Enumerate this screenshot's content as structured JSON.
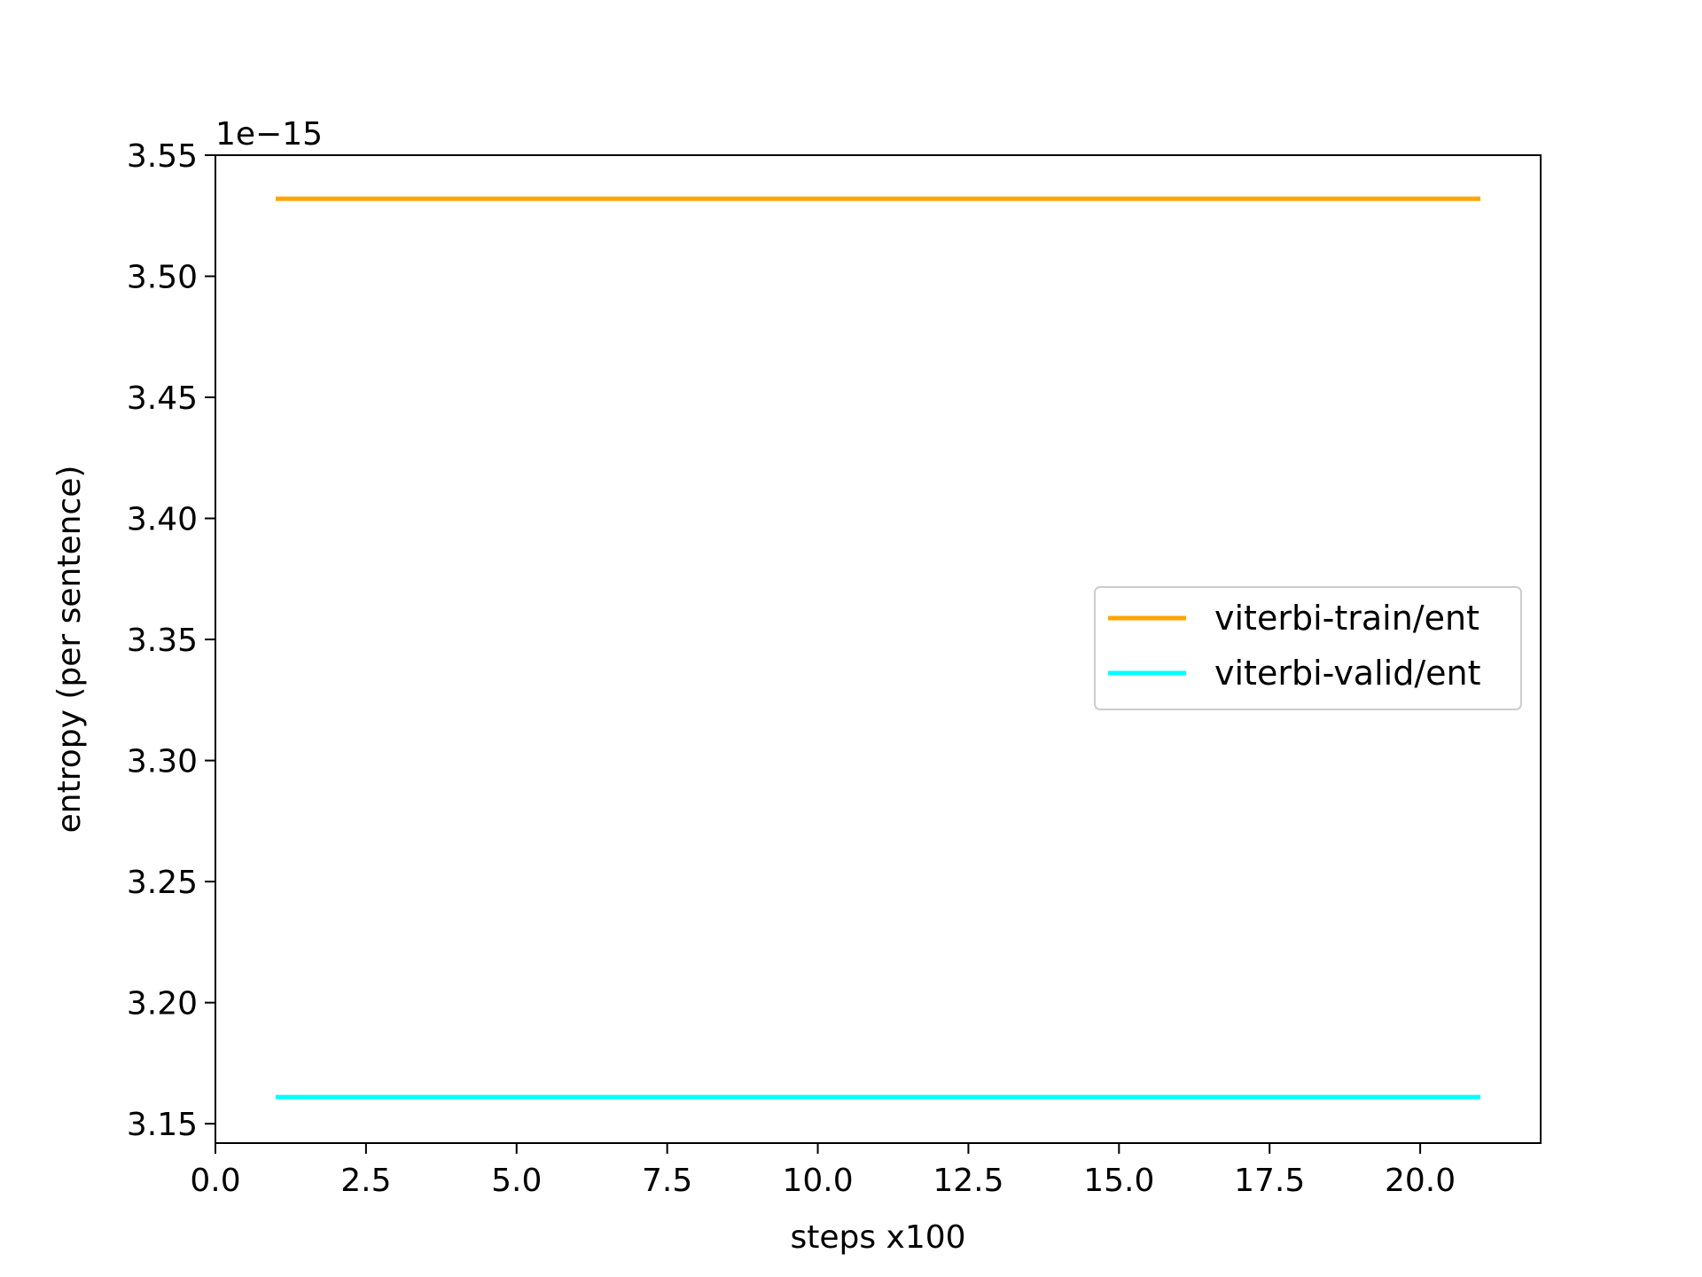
{
  "chart_data": {
    "type": "line",
    "xlabel": "steps x100",
    "ylabel": "entropy (per sentence)",
    "y_offset_text": "1e−15",
    "xlim": [
      0,
      22
    ],
    "ylim": [
      3.142,
      3.55
    ],
    "x_ticks": [
      0,
      2.5,
      5,
      7.5,
      10,
      12.5,
      15,
      17.5,
      20
    ],
    "x_tick_labels": [
      "0.0",
      "2.5",
      "5.0",
      "7.5",
      "10.0",
      "12.5",
      "15.0",
      "17.5",
      "20.0"
    ],
    "y_ticks": [
      3.15,
      3.2,
      3.25,
      3.3,
      3.35,
      3.4,
      3.45,
      3.5,
      3.55
    ],
    "y_tick_labels": [
      "3.15",
      "3.20",
      "3.25",
      "3.30",
      "3.35",
      "3.40",
      "3.45",
      "3.50",
      "3.55"
    ],
    "grid": false,
    "legend_position": "center-right",
    "series": [
      {
        "name": "viterbi-train/ent",
        "color": "#ffa500",
        "x": [
          1,
          21
        ],
        "y": [
          3.532,
          3.532
        ]
      },
      {
        "name": "viterbi-valid/ent",
        "color": "#00ffff",
        "x": [
          1,
          21
        ],
        "y": [
          3.161,
          3.161
        ]
      }
    ]
  }
}
